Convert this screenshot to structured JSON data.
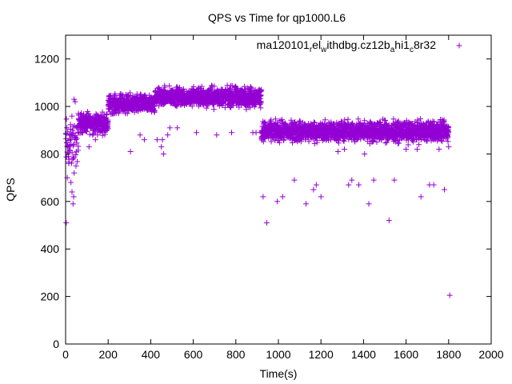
{
  "colors": {
    "series": "#9400d3",
    "axis": "#000000",
    "background": "#ffffff"
  },
  "chart_data": {
    "type": "scatter",
    "title": "QPS vs Time for qp1000.L6",
    "xlabel": "Time(s)",
    "ylabel": "QPS",
    "xlim": [
      0,
      2000
    ],
    "ylim": [
      0,
      1300
    ],
    "xticks": [
      0,
      200,
      400,
      600,
      800,
      1000,
      1200,
      1400,
      1600,
      1800,
      2000
    ],
    "yticks": [
      0,
      200,
      400,
      600,
      800,
      1000,
      1200
    ],
    "grid": false,
    "legend_position": "top-right",
    "legend": {
      "parts": [
        {
          "text": "ma120101",
          "sub": false
        },
        {
          "text": "r",
          "sub": true
        },
        {
          "text": "el",
          "sub": false
        },
        {
          "text": "w",
          "sub": true
        },
        {
          "text": "ithdbg.cz12b",
          "sub": false
        },
        {
          "text": "a",
          "sub": true
        },
        {
          "text": "hi1",
          "sub": false
        },
        {
          "text": "c",
          "sub": true
        },
        {
          "text": "8r32",
          "sub": false
        }
      ]
    },
    "series": [
      {
        "name": "ma120101_rel_withdbg.cz12b_ahi1_c8r32",
        "marker": "+",
        "phases": [
          {
            "x_range": [
              0,
              60
            ],
            "y_center": 840,
            "y_spread": 160,
            "count": 60
          },
          {
            "x_range": [
              60,
              200
            ],
            "y_center": 930,
            "y_spread": 60,
            "count": 280
          },
          {
            "x_range": [
              200,
              420
            ],
            "y_center": 1010,
            "y_spread": 55,
            "count": 440
          },
          {
            "x_range": [
              420,
              600
            ],
            "y_center": 1040,
            "y_spread": 55,
            "count": 360
          },
          {
            "x_range": [
              600,
              920
            ],
            "y_center": 1040,
            "y_spread": 60,
            "count": 640
          },
          {
            "x_range": [
              920,
              1800
            ],
            "y_center": 895,
            "y_spread": 60,
            "count": 1760
          }
        ],
        "outliers": [
          [
            3,
            510
          ],
          [
            8,
            700
          ],
          [
            15,
            760
          ],
          [
            25,
            680
          ],
          [
            30,
            640
          ],
          [
            35,
            590
          ],
          [
            38,
            620
          ],
          [
            45,
            1020
          ],
          [
            40,
            1030
          ],
          [
            110,
            830
          ],
          [
            140,
            860
          ],
          [
            150,
            880
          ],
          [
            305,
            810
          ],
          [
            350,
            880
          ],
          [
            370,
            860
          ],
          [
            430,
            860
          ],
          [
            455,
            860
          ],
          [
            450,
            830
          ],
          [
            460,
            800
          ],
          [
            480,
            880
          ],
          [
            490,
            910
          ],
          [
            525,
            910
          ],
          [
            615,
            890
          ],
          [
            710,
            880
          ],
          [
            780,
            890
          ],
          [
            880,
            890
          ],
          [
            895,
            890
          ],
          [
            928,
            620
          ],
          [
            945,
            510
          ],
          [
            995,
            600
          ],
          [
            1020,
            620
          ],
          [
            1075,
            690
          ],
          [
            1130,
            590
          ],
          [
            1165,
            650
          ],
          [
            1178,
            670
          ],
          [
            1200,
            620
          ],
          [
            1280,
            810
          ],
          [
            1310,
            820
          ],
          [
            1330,
            670
          ],
          [
            1345,
            690
          ],
          [
            1378,
            670
          ],
          [
            1405,
            800
          ],
          [
            1425,
            590
          ],
          [
            1448,
            690
          ],
          [
            1485,
            860
          ],
          [
            1520,
            520
          ],
          [
            1545,
            690
          ],
          [
            1600,
            820
          ],
          [
            1652,
            820
          ],
          [
            1670,
            620
          ],
          [
            1710,
            670
          ],
          [
            1730,
            670
          ],
          [
            1755,
            820
          ],
          [
            1780,
            650
          ],
          [
            1800,
            830
          ],
          [
            1805,
            205
          ]
        ]
      }
    ]
  }
}
